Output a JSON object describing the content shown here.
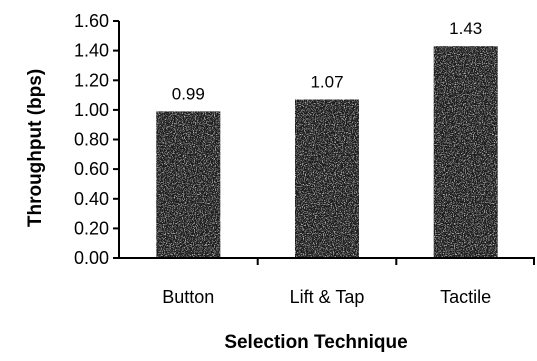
{
  "chart_data": {
    "type": "bar",
    "title": "",
    "xlabel": "Selection Technique",
    "ylabel": "Throughput (bps)",
    "categories": [
      "Button",
      "Lift & Tap",
      "Tactile"
    ],
    "values": [
      0.99,
      1.07,
      1.43
    ],
    "data_labels": [
      "0.99",
      "1.07",
      "1.43"
    ],
    "ylim": [
      0,
      1.6
    ],
    "yticks": [
      0,
      0.2,
      0.4,
      0.6,
      0.8,
      1.0,
      1.2,
      1.4,
      1.6
    ],
    "ytick_labels": [
      "0.00",
      "0.20",
      "0.40",
      "0.60",
      "0.80",
      "1.00",
      "1.20",
      "1.40",
      "1.60"
    ],
    "grid": false,
    "legend": "none",
    "bar_color": "#1a1a1a"
  }
}
